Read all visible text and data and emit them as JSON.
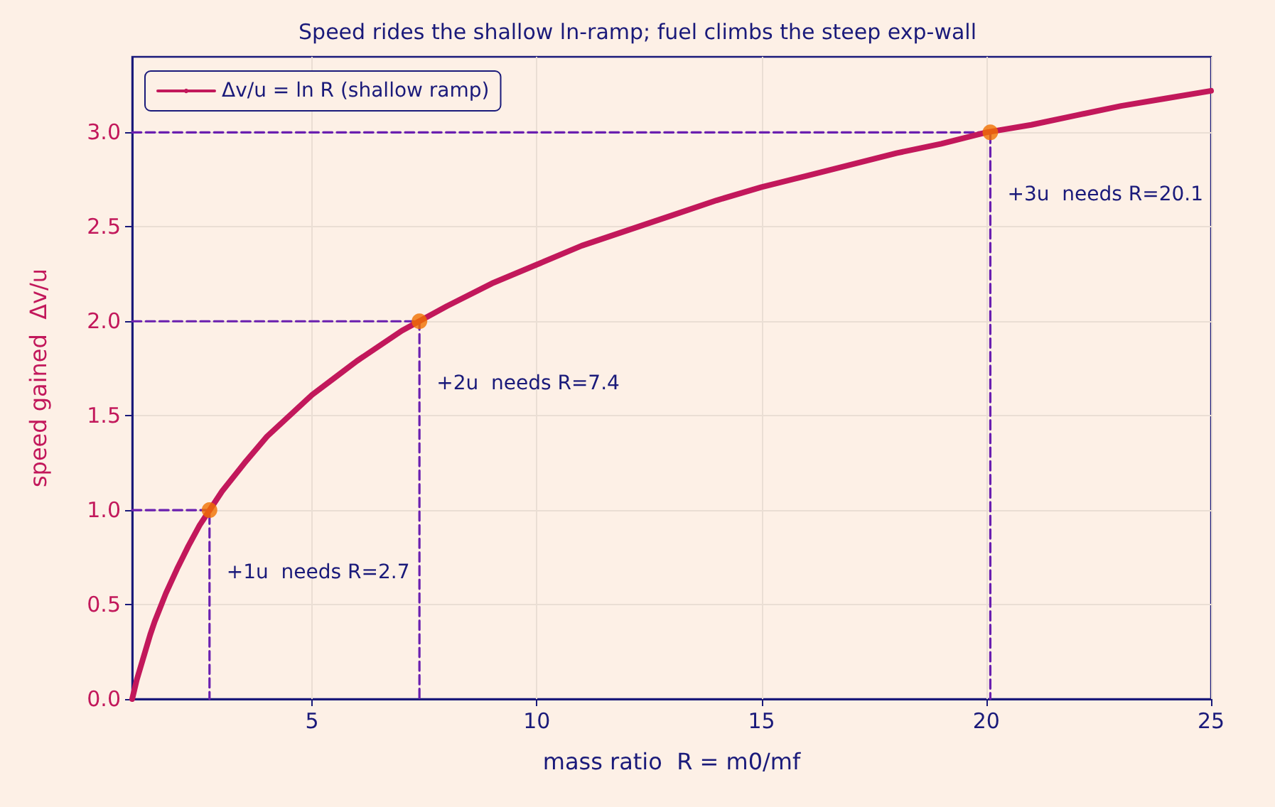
{
  "chart_data": {
    "type": "line",
    "title": "Speed rides the shallow ln-ramp; fuel climbs the steep exp-wall",
    "xlabel": "mass ratio  R = m0/mf",
    "ylabel": "speed gained  Δv/u",
    "xlim": [
      1,
      25
    ],
    "xticks": [
      5,
      10,
      15,
      20,
      25
    ],
    "ylim": [
      0,
      3.4
    ],
    "yticks": [
      {
        "value": 0,
        "label": "0.0"
      },
      0.5,
      {
        "value": 1,
        "label": "1.0"
      },
      1.5,
      {
        "value": 2,
        "label": "2.0"
      },
      2.5,
      {
        "value": 3,
        "label": "3.0"
      }
    ],
    "grid": true,
    "legend": "top left",
    "series": [
      {
        "name": "Δv/u = ln R (shallow ramp)",
        "color": "#c2185b",
        "marker": "none",
        "line_style": "solid",
        "x": [
          1,
          1.05,
          1.1,
          1.2,
          1.3,
          1.4,
          1.5,
          1.75,
          2,
          2.25,
          2.5,
          2.75,
          3,
          3.5,
          4,
          4.5,
          5,
          5.5,
          6,
          7,
          8,
          9,
          10,
          11,
          12,
          13,
          14,
          15,
          16,
          17,
          18,
          19,
          20,
          21,
          22,
          23,
          24,
          25
        ],
        "values": [
          0,
          0.05,
          0.1,
          0.18,
          0.26,
          0.34,
          0.41,
          0.56,
          0.69,
          0.81,
          0.92,
          1.01,
          1.1,
          1.25,
          1.39,
          1.5,
          1.61,
          1.7,
          1.79,
          1.95,
          2.08,
          2.2,
          2.3,
          2.4,
          2.48,
          2.56,
          2.64,
          2.71,
          2.77,
          2.83,
          2.89,
          2.94,
          3.0,
          3.04,
          3.09,
          3.14,
          3.18,
          3.22
        ]
      },
      {
        "color": "#6a1fb0",
        "type": "line",
        "marker": "none",
        "line_style": "dashed",
        "x": [
          1,
          2.72,
          2.72
        ],
        "values": [
          1,
          1,
          0
        ]
      },
      {
        "color": "#6a1fb0",
        "type": "line",
        "marker": "none",
        "line_style": "dashed",
        "x": [
          1,
          7.39,
          7.39
        ],
        "values": [
          2,
          2,
          0
        ]
      },
      {
        "color": "#6a1fb0",
        "type": "line",
        "marker": "none",
        "line_style": "dashed",
        "x": [
          1,
          20.09,
          20.09
        ],
        "values": [
          3,
          3,
          0
        ]
      },
      {
        "color": "#f07000",
        "type": "scatter",
        "marker": "circle",
        "x": [
          2.72,
          7.39,
          20.09
        ],
        "values": [
          1,
          2,
          3
        ]
      }
    ],
    "annotations": [
      {
        "text": "+1u  needs R=2.7",
        "x": 2.72,
        "y": 1
      },
      {
        "text": "+2u  needs R=7.4",
        "x": 7.39,
        "y": 2
      },
      {
        "text": "+3u  needs R=20.1",
        "x": 20.09,
        "y": 3
      }
    ]
  }
}
